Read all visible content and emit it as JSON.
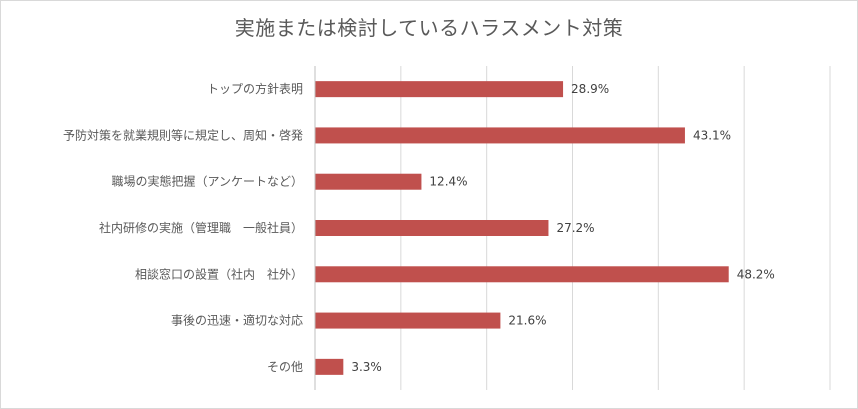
{
  "chart_data": {
    "type": "bar",
    "orientation": "horizontal",
    "title": "実施または検討しているハラスメント対策",
    "categories": [
      "トップの方針表明",
      "予防対策を就業規則等に規定し、周知・啓発",
      "職場の実態把握（アンケートなど）",
      "社内研修の実施（管理職　一般社員）",
      "相談窓口の設置（社内　社外）",
      "事後の迅速・適切な対応",
      "その他"
    ],
    "values": [
      28.9,
      43.1,
      12.4,
      27.2,
      48.2,
      21.6,
      3.3
    ],
    "value_labels": [
      "28.9%",
      "43.1%",
      "12.4%",
      "27.2%",
      "48.2%",
      "21.6%",
      "3.3%"
    ],
    "xlim": [
      0,
      60
    ],
    "grid": true,
    "bar_color": "#c0504d",
    "grid_color": "#d9d9d9"
  }
}
